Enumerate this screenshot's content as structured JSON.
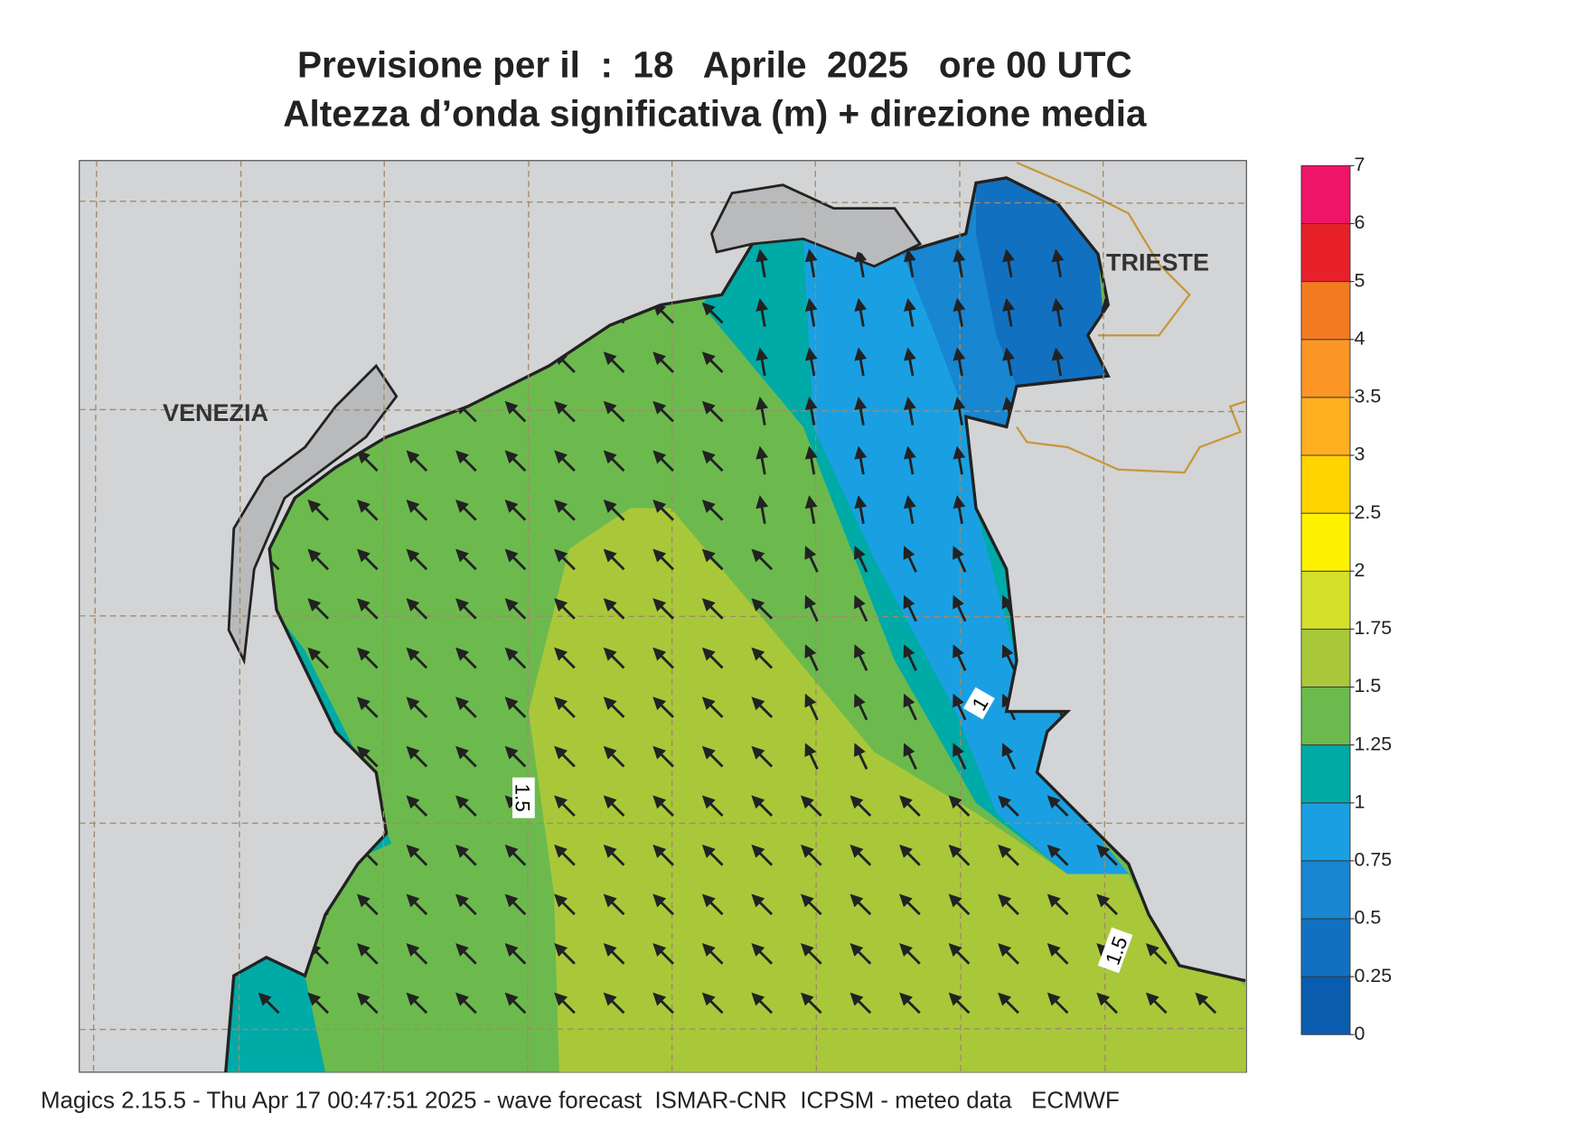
{
  "title": {
    "line1": "Previsione per il  :  18   Aprile  2025   ore 00 UTC",
    "line2": "Altezza d’onda significativa (m) + direzione media"
  },
  "map": {
    "labels": [
      "VENEZIA",
      "TRIESTE"
    ],
    "contour_labels": [
      "1",
      "1.5",
      "1.5"
    ]
  },
  "colorbar": {
    "ticks": [
      0,
      0.25,
      0.5,
      0.75,
      1,
      1.25,
      1.5,
      1.75,
      2,
      2.5,
      3,
      3.5,
      4,
      5,
      6,
      7
    ],
    "colors": [
      "#0a5cae",
      "#1270c0",
      "#1886d0",
      "#1aa0e2",
      "#00aaa6",
      "#6cba4e",
      "#a8c83a",
      "#d4df2a",
      "#fff200",
      "#ffd400",
      "#ffb020",
      "#fb9624",
      "#f47a22",
      "#e8202a",
      "#ef1468"
    ]
  },
  "footer": "Magics 2.15.5 - Thu Apr 17 00:47:51 2025 - wave forecast  ISMAR-CNR  ICPSM - meteo data   ECMWF"
}
